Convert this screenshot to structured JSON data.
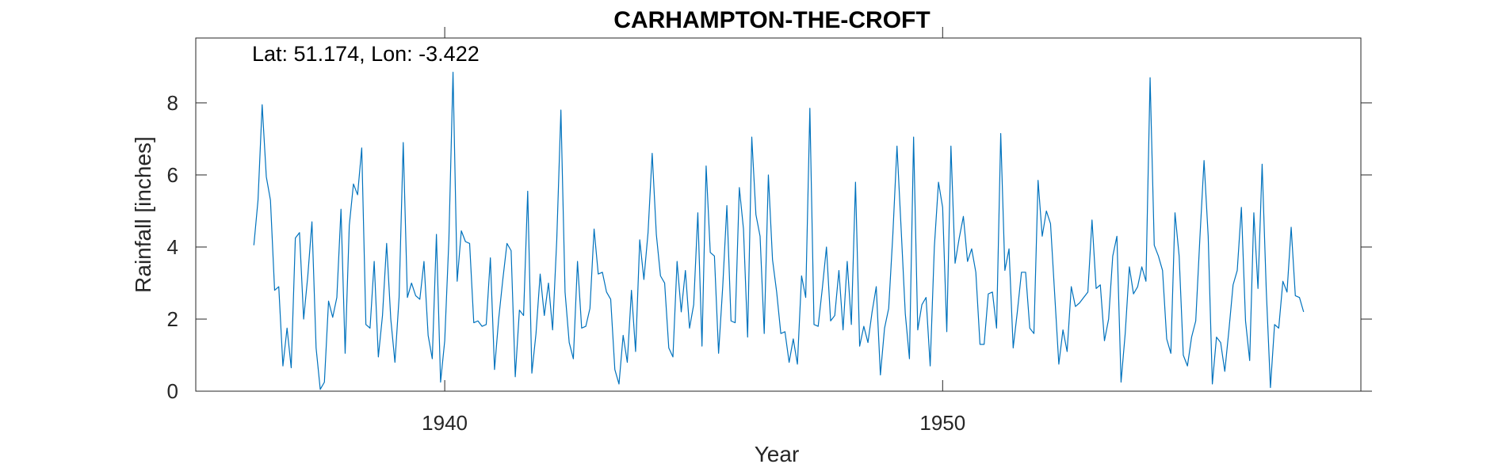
{
  "chart_data": {
    "type": "line",
    "title": "CARHAMPTON-THE-CROFT",
    "annotation": "Lat: 51.174, Lon: -3.422",
    "xlabel": "Year",
    "ylabel": "Rainfall [inches]",
    "xlim": [
      1935.0,
      1958.4
    ],
    "ylim": [
      0,
      9.8
    ],
    "xticks": [
      1940,
      1950
    ],
    "xtick_labels": [
      "1940",
      "1950"
    ],
    "yticks": [
      0,
      2,
      4,
      6,
      8
    ],
    "ytick_labels": [
      "0",
      "2",
      "4",
      "6",
      "8"
    ],
    "grid": false,
    "line_color": "#0072bd",
    "series": [
      {
        "x_start_year": 1936,
        "x_start_month": 3,
        "values": [
          4.05,
          5.3,
          7.95,
          5.95,
          5.3,
          2.8,
          2.9,
          0.7,
          1.75,
          0.65,
          4.25,
          4.4,
          2.0,
          3.2,
          4.7,
          1.2,
          0.05,
          0.25,
          2.5,
          2.05,
          2.6,
          5.05,
          1.05,
          4.6,
          5.75,
          5.45,
          6.75,
          1.85,
          1.75,
          3.6,
          0.95,
          2.1,
          4.1,
          2.0,
          0.8,
          2.6,
          6.9,
          2.6,
          3.0,
          2.65,
          2.55,
          3.6,
          1.55,
          0.9,
          4.35,
          0.25,
          1.4,
          4.2,
          8.85,
          3.05,
          4.45,
          4.15,
          4.1,
          1.9,
          1.95,
          1.8,
          1.85,
          3.7,
          0.6,
          2.0,
          3.1,
          4.1,
          3.9,
          0.4,
          2.25,
          2.1,
          5.55,
          0.5,
          1.6,
          3.25,
          2.1,
          3.0,
          1.7,
          4.2,
          7.8,
          2.75,
          1.35,
          0.9,
          3.6,
          1.75,
          1.8,
          2.3,
          4.5,
          3.25,
          3.3,
          2.75,
          2.55,
          0.6,
          0.2,
          1.55,
          0.8,
          2.8,
          1.1,
          4.2,
          3.1,
          4.4,
          6.6,
          4.35,
          3.2,
          3.0,
          1.2,
          0.95,
          3.6,
          2.2,
          3.35,
          1.75,
          2.4,
          4.95,
          1.25,
          6.25,
          3.85,
          3.75,
          1.05,
          2.9,
          5.15,
          1.95,
          1.9,
          5.65,
          4.5,
          1.5,
          7.05,
          4.9,
          4.3,
          1.6,
          6.0,
          3.65,
          2.75,
          1.6,
          1.65,
          0.8,
          1.45,
          0.75,
          3.2,
          2.6,
          7.85,
          1.85,
          1.8,
          2.85,
          4.0,
          1.95,
          2.1,
          3.35,
          1.7,
          3.6,
          1.85,
          5.8,
          1.25,
          1.8,
          1.35,
          2.2,
          2.9,
          0.45,
          1.75,
          2.3,
          4.35,
          6.8,
          4.5,
          2.15,
          0.9,
          7.05,
          1.7,
          2.4,
          2.6,
          0.7,
          4.0,
          5.8,
          5.1,
          1.65,
          6.8,
          3.55,
          4.25,
          4.85,
          3.6,
          3.95,
          3.3,
          1.3,
          1.3,
          2.7,
          2.75,
          1.75,
          7.15,
          3.35,
          3.95,
          1.2,
          2.2,
          3.3,
          3.3,
          1.75,
          1.6,
          5.85,
          4.3,
          5.0,
          4.65,
          2.7,
          0.75,
          1.7,
          1.1,
          2.9,
          2.35,
          2.45,
          2.6,
          2.75,
          4.75,
          2.85,
          2.95,
          1.4,
          2.0,
          3.75,
          4.3,
          0.25,
          1.6,
          3.45,
          2.7,
          2.9,
          3.45,
          3.05,
          8.7,
          4.05,
          3.75,
          3.35,
          1.45,
          1.05,
          4.95,
          3.75,
          1.0,
          0.7,
          1.5,
          1.95,
          4.25,
          6.4,
          4.3,
          0.2,
          1.5,
          1.35,
          0.55,
          1.7,
          2.95,
          3.35,
          5.1,
          1.95,
          0.85,
          4.95,
          2.85,
          6.3,
          2.8,
          0.1,
          1.85,
          1.75,
          3.05,
          2.75,
          4.55,
          2.65,
          2.6,
          2.2
        ]
      }
    ]
  }
}
